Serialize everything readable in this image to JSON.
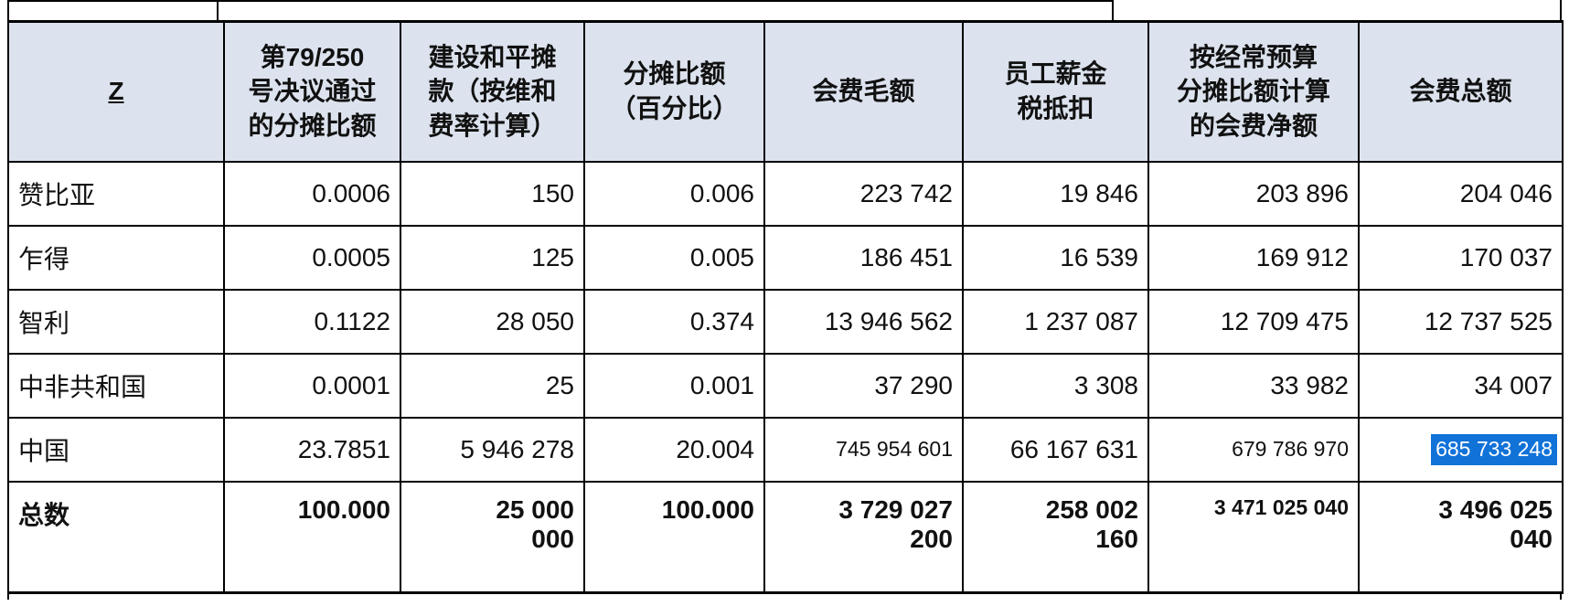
{
  "colors": {
    "header_bg": "#dce3ee",
    "selection_bg": "#1172d8",
    "selection_text": "#ffffff",
    "border": "#000000",
    "text": "#111111"
  },
  "table": {
    "header": [
      "Z",
      "第79/250\n号决议通过\n的分摊比额",
      "建设和平摊\n款（按维和\n费率计算）",
      "分摊比额\n（百分比）",
      "会费毛额",
      "员工薪金\n税抵扣",
      "按经常预算\n分摊比额计算\n的会费净额",
      "会费总额"
    ],
    "rows": [
      {
        "label": "赞比亚",
        "values": [
          "0.0006",
          "150",
          "0.006",
          "223 742",
          "19 846",
          "203 896",
          "204 046"
        ],
        "small": [],
        "selected": -1
      },
      {
        "label": "乍得",
        "values": [
          "0.0005",
          "125",
          "0.005",
          "186 451",
          "16 539",
          "169 912",
          "170 037"
        ],
        "small": [],
        "selected": -1
      },
      {
        "label": "智利",
        "values": [
          "0.1122",
          "28 050",
          "0.374",
          "13 946 562",
          "1 237 087",
          "12 709 475",
          "12 737 525"
        ],
        "small": [],
        "selected": -1
      },
      {
        "label": "中非共和国",
        "values": [
          "0.0001",
          "25",
          "0.001",
          "37 290",
          "3 308",
          "33 982",
          "34 007"
        ],
        "small": [],
        "selected": -1
      },
      {
        "label": "中国",
        "values": [
          "23.7851",
          "5 946 278",
          "20.004",
          "745 954 601",
          "66 167 631",
          "679 786 970",
          "685 733 248"
        ],
        "small": [
          3,
          5,
          6
        ],
        "selected": 6
      }
    ],
    "total": {
      "label": "总数",
      "values": [
        "100.000",
        "25 000\n000",
        "100.000",
        "3 729 027\n200",
        "258 002\n160",
        "3 471 025 040",
        "3 496 025\n040"
      ],
      "small": [
        5
      ]
    }
  }
}
